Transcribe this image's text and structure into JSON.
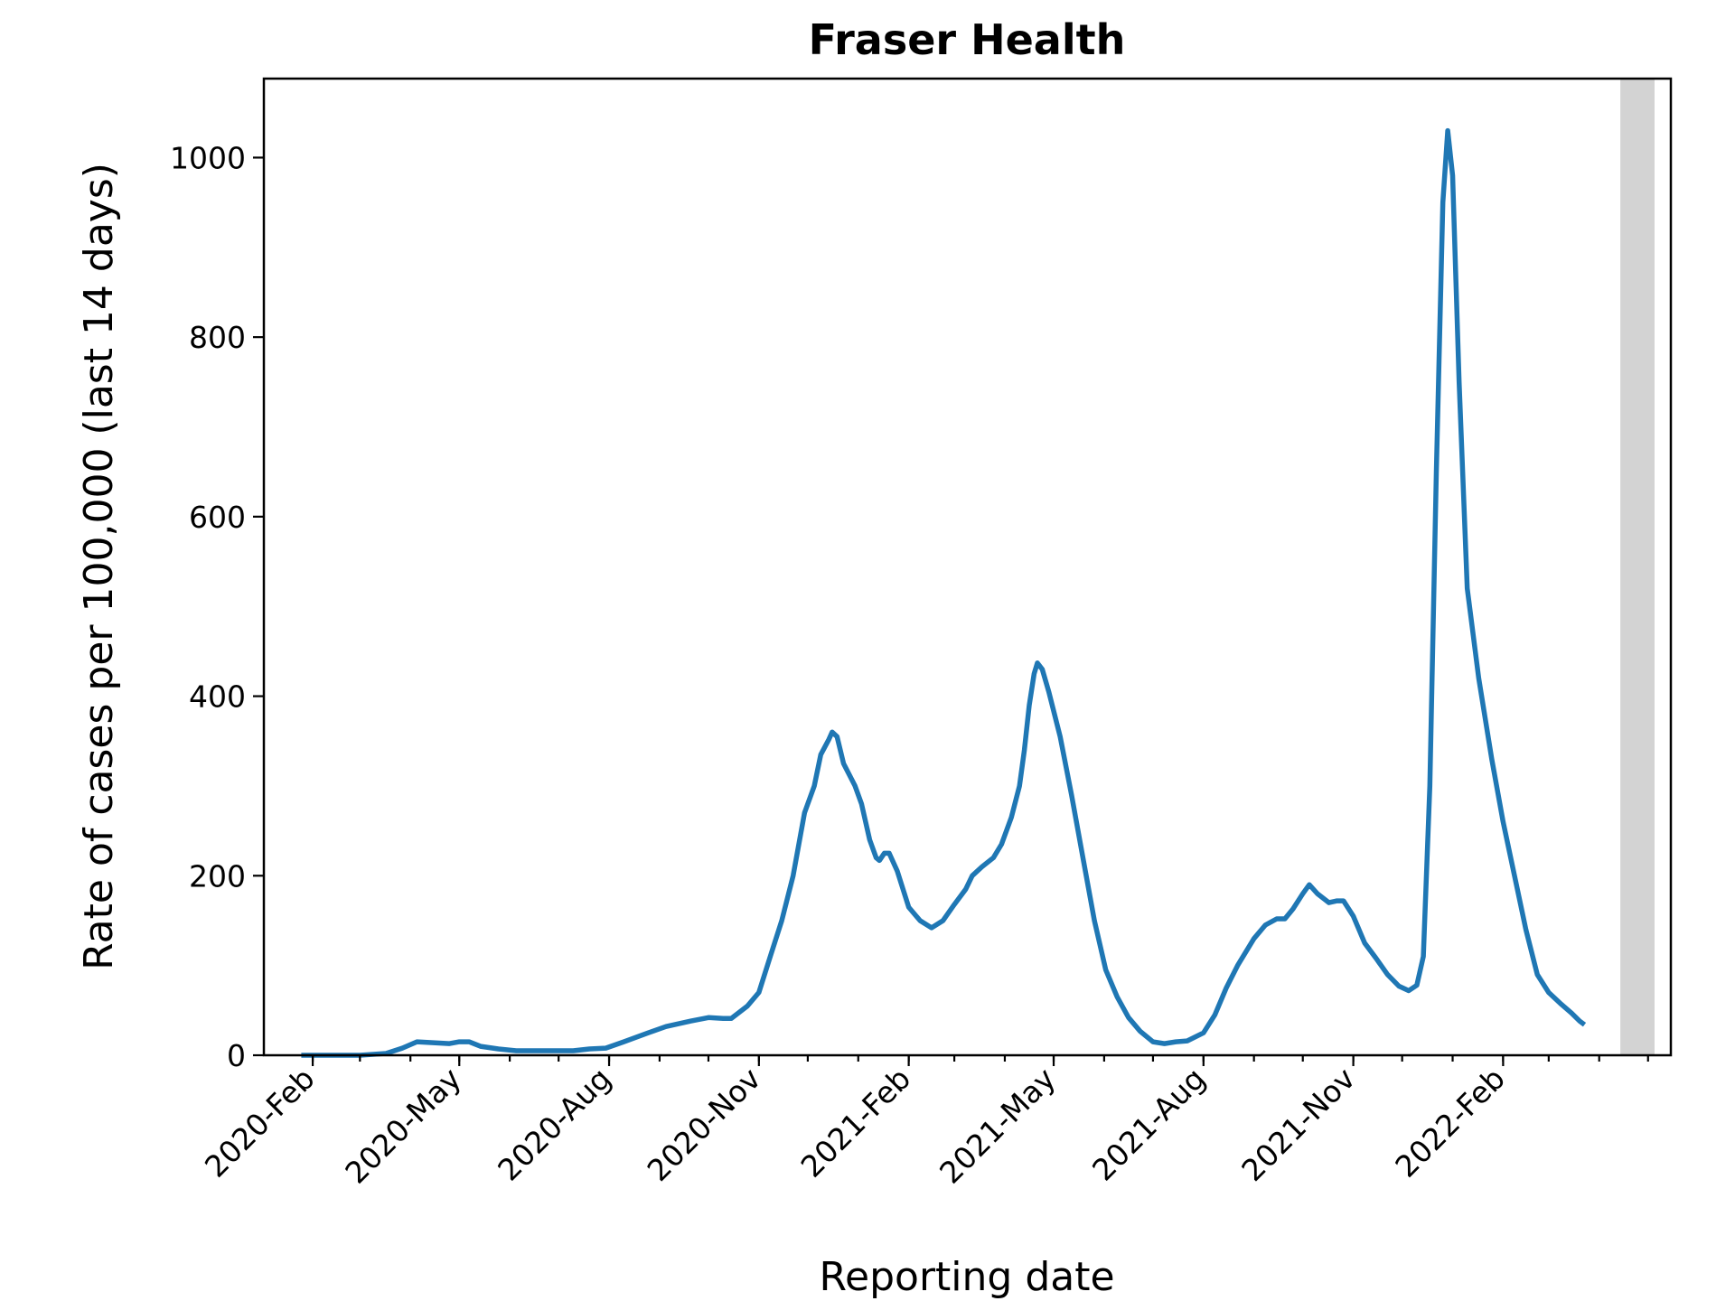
{
  "chart_data": {
    "type": "line",
    "title": "Fraser Health",
    "xlabel": "Reporting date",
    "ylabel": "Rate of cases per 100,000 (last 14 days)",
    "x_axis_type": "date",
    "xlim": [
      "2020-01-02",
      "2022-05-15"
    ],
    "ylim": [
      0,
      1088
    ],
    "yticks": [
      0,
      200,
      400,
      600,
      800,
      1000
    ],
    "xtick_labels": [
      {
        "date": "2020-02-01",
        "label": "2020-Feb"
      },
      {
        "date": "2020-05-01",
        "label": "2020-May"
      },
      {
        "date": "2020-08-01",
        "label": "2020-Aug"
      },
      {
        "date": "2020-11-01",
        "label": "2020-Nov"
      },
      {
        "date": "2021-02-01",
        "label": "2021-Feb"
      },
      {
        "date": "2021-05-01",
        "label": "2021-May"
      },
      {
        "date": "2021-08-01",
        "label": "2021-Aug"
      },
      {
        "date": "2021-11-01",
        "label": "2021-Nov"
      },
      {
        "date": "2022-02-01",
        "label": "2022-Feb"
      }
    ],
    "minor_ticks": "monthly",
    "grid": false,
    "legend": false,
    "shaded_region": {
      "start": "2022-04-14",
      "end": "2022-05-05",
      "color": "#d3d3d3"
    },
    "series": [
      {
        "color": "#1f77b4",
        "points": [
          [
            "2020-01-25",
            0
          ],
          [
            "2020-03-01",
            0
          ],
          [
            "2020-03-17",
            2
          ],
          [
            "2020-03-27",
            8
          ],
          [
            "2020-04-05",
            15
          ],
          [
            "2020-04-15",
            14
          ],
          [
            "2020-04-25",
            13
          ],
          [
            "2020-05-01",
            15
          ],
          [
            "2020-05-07",
            15
          ],
          [
            "2020-05-14",
            10
          ],
          [
            "2020-05-25",
            7
          ],
          [
            "2020-06-05",
            5
          ],
          [
            "2020-06-20",
            5
          ],
          [
            "2020-07-10",
            5
          ],
          [
            "2020-07-20",
            7
          ],
          [
            "2020-07-30",
            8
          ],
          [
            "2020-08-10",
            15
          ],
          [
            "2020-08-25",
            25
          ],
          [
            "2020-09-05",
            32
          ],
          [
            "2020-09-20",
            38
          ],
          [
            "2020-10-01",
            42
          ],
          [
            "2020-10-10",
            41
          ],
          [
            "2020-10-15",
            41
          ],
          [
            "2020-10-25",
            55
          ],
          [
            "2020-11-01",
            70
          ],
          [
            "2020-11-08",
            110
          ],
          [
            "2020-11-15",
            150
          ],
          [
            "2020-11-22",
            200
          ],
          [
            "2020-11-29",
            270
          ],
          [
            "2020-12-05",
            300
          ],
          [
            "2020-12-09",
            335
          ],
          [
            "2020-12-14",
            352
          ],
          [
            "2020-12-16",
            360
          ],
          [
            "2020-12-19",
            355
          ],
          [
            "2020-12-23",
            325
          ],
          [
            "2020-12-30",
            300
          ],
          [
            "2021-01-03",
            280
          ],
          [
            "2021-01-08",
            240
          ],
          [
            "2021-01-12",
            220
          ],
          [
            "2021-01-14",
            217
          ],
          [
            "2021-01-17",
            225
          ],
          [
            "2021-01-20",
            225
          ],
          [
            "2021-01-25",
            205
          ],
          [
            "2021-02-01",
            165
          ],
          [
            "2021-02-08",
            150
          ],
          [
            "2021-02-15",
            142
          ],
          [
            "2021-02-22",
            150
          ],
          [
            "2021-03-01",
            168
          ],
          [
            "2021-03-08",
            185
          ],
          [
            "2021-03-12",
            200
          ],
          [
            "2021-03-18",
            210
          ],
          [
            "2021-03-25",
            220
          ],
          [
            "2021-03-30",
            235
          ],
          [
            "2021-04-05",
            265
          ],
          [
            "2021-04-10",
            300
          ],
          [
            "2021-04-13",
            340
          ],
          [
            "2021-04-16",
            390
          ],
          [
            "2021-04-19",
            425
          ],
          [
            "2021-04-21",
            437
          ],
          [
            "2021-04-24",
            430
          ],
          [
            "2021-04-28",
            405
          ],
          [
            "2021-05-05",
            355
          ],
          [
            "2021-05-12",
            290
          ],
          [
            "2021-05-19",
            220
          ],
          [
            "2021-05-26",
            150
          ],
          [
            "2021-06-02",
            95
          ],
          [
            "2021-06-09",
            65
          ],
          [
            "2021-06-16",
            42
          ],
          [
            "2021-06-23",
            27
          ],
          [
            "2021-07-01",
            15
          ],
          [
            "2021-07-08",
            13
          ],
          [
            "2021-07-15",
            15
          ],
          [
            "2021-07-22",
            16
          ],
          [
            "2021-08-01",
            25
          ],
          [
            "2021-08-08",
            45
          ],
          [
            "2021-08-15",
            75
          ],
          [
            "2021-08-22",
            100
          ],
          [
            "2021-09-01",
            130
          ],
          [
            "2021-09-08",
            145
          ],
          [
            "2021-09-15",
            152
          ],
          [
            "2021-09-20",
            152
          ],
          [
            "2021-09-25",
            163
          ],
          [
            "2021-10-01",
            180
          ],
          [
            "2021-10-05",
            190
          ],
          [
            "2021-10-10",
            180
          ],
          [
            "2021-10-17",
            170
          ],
          [
            "2021-10-22",
            172
          ],
          [
            "2021-10-26",
            172
          ],
          [
            "2021-11-01",
            155
          ],
          [
            "2021-11-08",
            125
          ],
          [
            "2021-11-15",
            108
          ],
          [
            "2021-11-22",
            90
          ],
          [
            "2021-11-29",
            77
          ],
          [
            "2021-12-05",
            72
          ],
          [
            "2021-12-10",
            78
          ],
          [
            "2021-12-14",
            110
          ],
          [
            "2021-12-18",
            300
          ],
          [
            "2021-12-22",
            650
          ],
          [
            "2021-12-26",
            950
          ],
          [
            "2021-12-29",
            1030
          ],
          [
            "2022-01-01",
            980
          ],
          [
            "2022-01-05",
            750
          ],
          [
            "2022-01-10",
            520
          ],
          [
            "2022-01-17",
            420
          ],
          [
            "2022-01-25",
            330
          ],
          [
            "2022-02-01",
            260
          ],
          [
            "2022-02-08",
            200
          ],
          [
            "2022-02-15",
            140
          ],
          [
            "2022-02-22",
            90
          ],
          [
            "2022-03-01",
            70
          ],
          [
            "2022-03-08",
            58
          ],
          [
            "2022-03-15",
            47
          ],
          [
            "2022-03-20",
            38
          ],
          [
            "2022-03-23",
            34
          ]
        ]
      }
    ]
  }
}
